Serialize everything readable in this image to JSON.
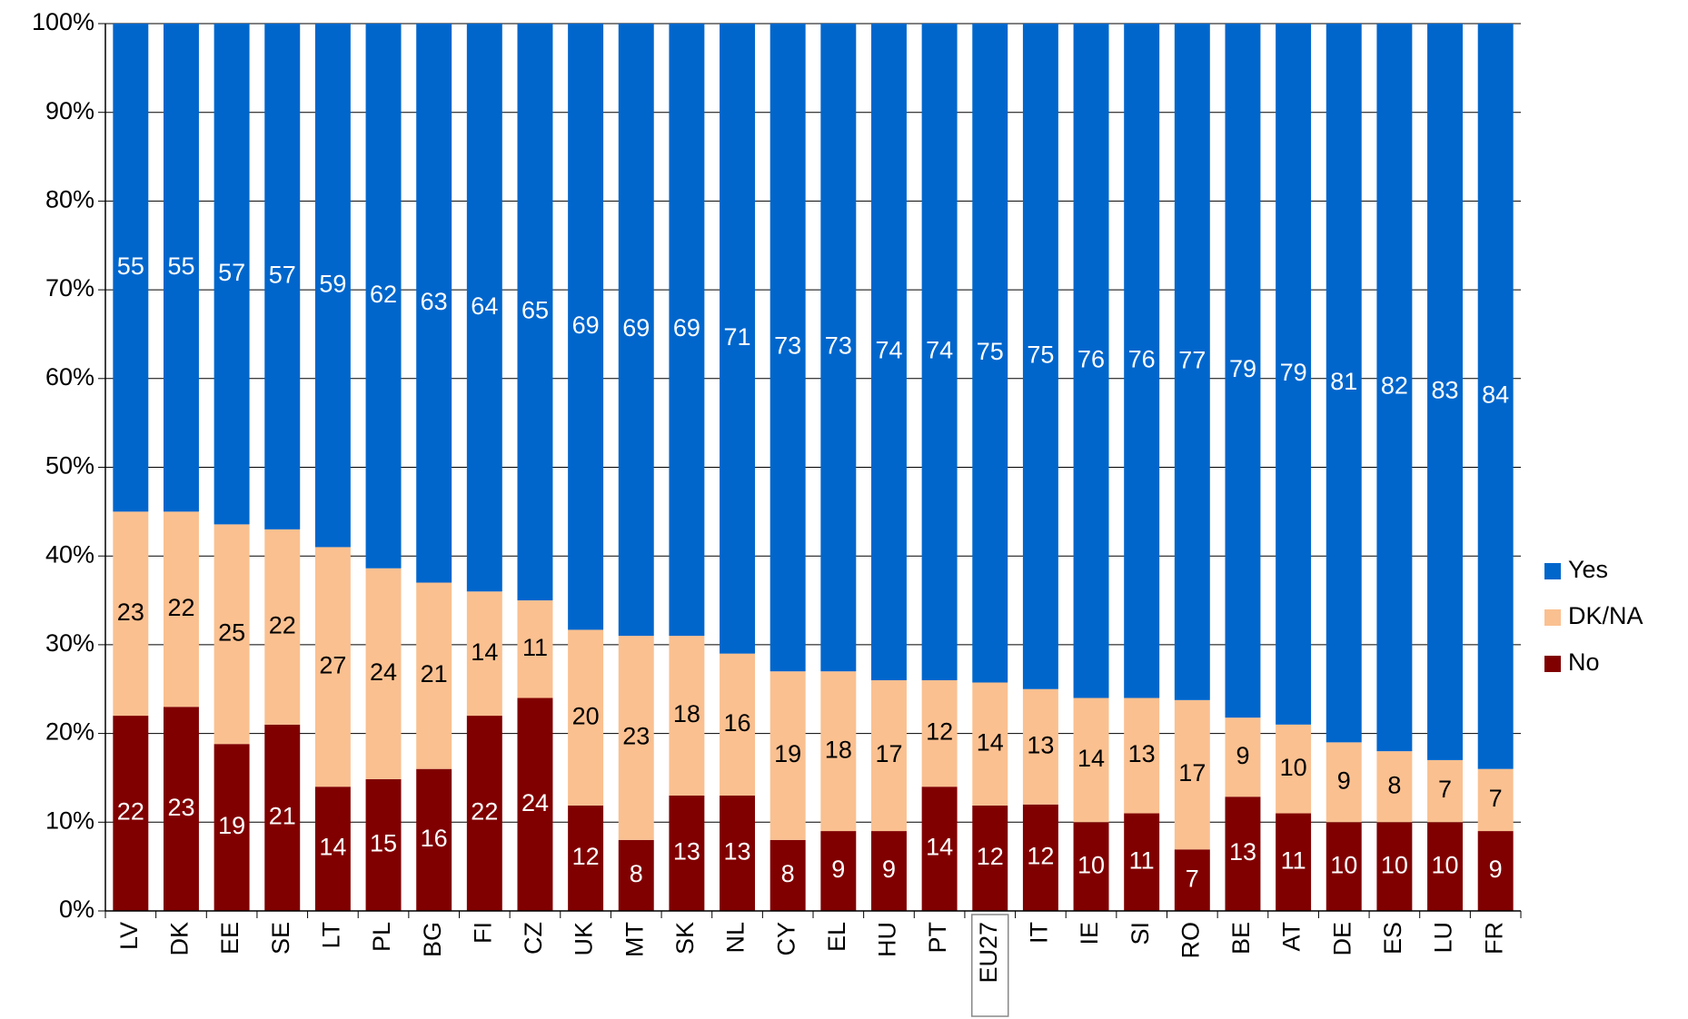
{
  "chart_data": {
    "type": "stacked_bar_percent",
    "categories": [
      "LV",
      "DK",
      "EE",
      "SE",
      "LT",
      "PL",
      "BG",
      "FI",
      "CZ",
      "UK",
      "MT",
      "SK",
      "NL",
      "CY",
      "EL",
      "HU",
      "PT",
      "EU27",
      "IT",
      "IE",
      "SI",
      "RO",
      "BE",
      "AT",
      "DE",
      "ES",
      "LU",
      "FR"
    ],
    "series": [
      {
        "name": "No",
        "color": "#800000",
        "label_color": "#ffffff",
        "values": [
          22,
          23,
          19,
          21,
          14,
          15,
          16,
          22,
          24,
          12,
          8,
          13,
          13,
          8,
          9,
          9,
          14,
          12,
          12,
          10,
          11,
          7,
          13,
          11,
          10,
          10,
          10,
          9
        ]
      },
      {
        "name": "DK/NA",
        "color": "#fac090",
        "label_color": "#000000",
        "values": [
          23,
          22,
          25,
          22,
          27,
          24,
          21,
          14,
          11,
          20,
          23,
          18,
          16,
          19,
          18,
          17,
          12,
          14,
          13,
          14,
          13,
          17,
          9,
          10,
          9,
          8,
          7,
          7
        ]
      },
      {
        "name": "Yes",
        "color": "#0066cc",
        "label_color": "#ffffff",
        "values": [
          55,
          55,
          57,
          57,
          59,
          62,
          63,
          64,
          65,
          69,
          69,
          69,
          71,
          73,
          73,
          74,
          74,
          75,
          75,
          76,
          76,
          77,
          79,
          79,
          81,
          82,
          83,
          84
        ]
      }
    ],
    "ylim": [
      0,
      100
    ],
    "yticks": [
      {
        "value": 0,
        "label": "0%"
      },
      {
        "value": 10,
        "label": "10%"
      },
      {
        "value": 20,
        "label": "20%"
      },
      {
        "value": 30,
        "label": "30%"
      },
      {
        "value": 40,
        "label": "40%"
      },
      {
        "value": 50,
        "label": "50%"
      },
      {
        "value": 60,
        "label": "60%"
      },
      {
        "value": 70,
        "label": "70%"
      },
      {
        "value": 80,
        "label": "80%"
      },
      {
        "value": 90,
        "label": "90%"
      },
      {
        "value": 100,
        "label": "100%"
      }
    ],
    "grid": true,
    "legend": "right",
    "highlight_category": "EU27"
  }
}
